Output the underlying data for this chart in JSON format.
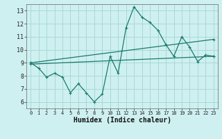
{
  "xlabel": "Humidex (Indice chaleur)",
  "bg_color": "#cff0f0",
  "grid_color": "#a8d8d8",
  "line_color": "#1a7a6e",
  "xlim": [
    -0.5,
    23.5
  ],
  "ylim": [
    5.5,
    13.5
  ],
  "yticks": [
    6,
    7,
    8,
    9,
    10,
    11,
    12,
    13
  ],
  "xticks": [
    0,
    1,
    2,
    3,
    4,
    5,
    6,
    7,
    8,
    9,
    10,
    11,
    12,
    13,
    14,
    15,
    16,
    17,
    18,
    19,
    20,
    21,
    22,
    23
  ],
  "series1_x": [
    0,
    1,
    2,
    3,
    4,
    5,
    6,
    7,
    8,
    9,
    10,
    11,
    12,
    13,
    14,
    15,
    16,
    17,
    18,
    19,
    20,
    21,
    22,
    23
  ],
  "series1_y": [
    9.0,
    8.6,
    7.9,
    8.2,
    7.9,
    6.7,
    7.4,
    6.7,
    6.0,
    6.6,
    9.5,
    8.2,
    11.7,
    13.3,
    12.5,
    12.1,
    11.5,
    10.4,
    9.5,
    11.0,
    10.2,
    9.1,
    9.6,
    9.5
  ],
  "series2_x": [
    0,
    23
  ],
  "series2_y": [
    9.0,
    10.8
  ],
  "series3_x": [
    0,
    23
  ],
  "series3_y": [
    8.9,
    9.5
  ],
  "markersize": 3,
  "linewidth": 0.9
}
